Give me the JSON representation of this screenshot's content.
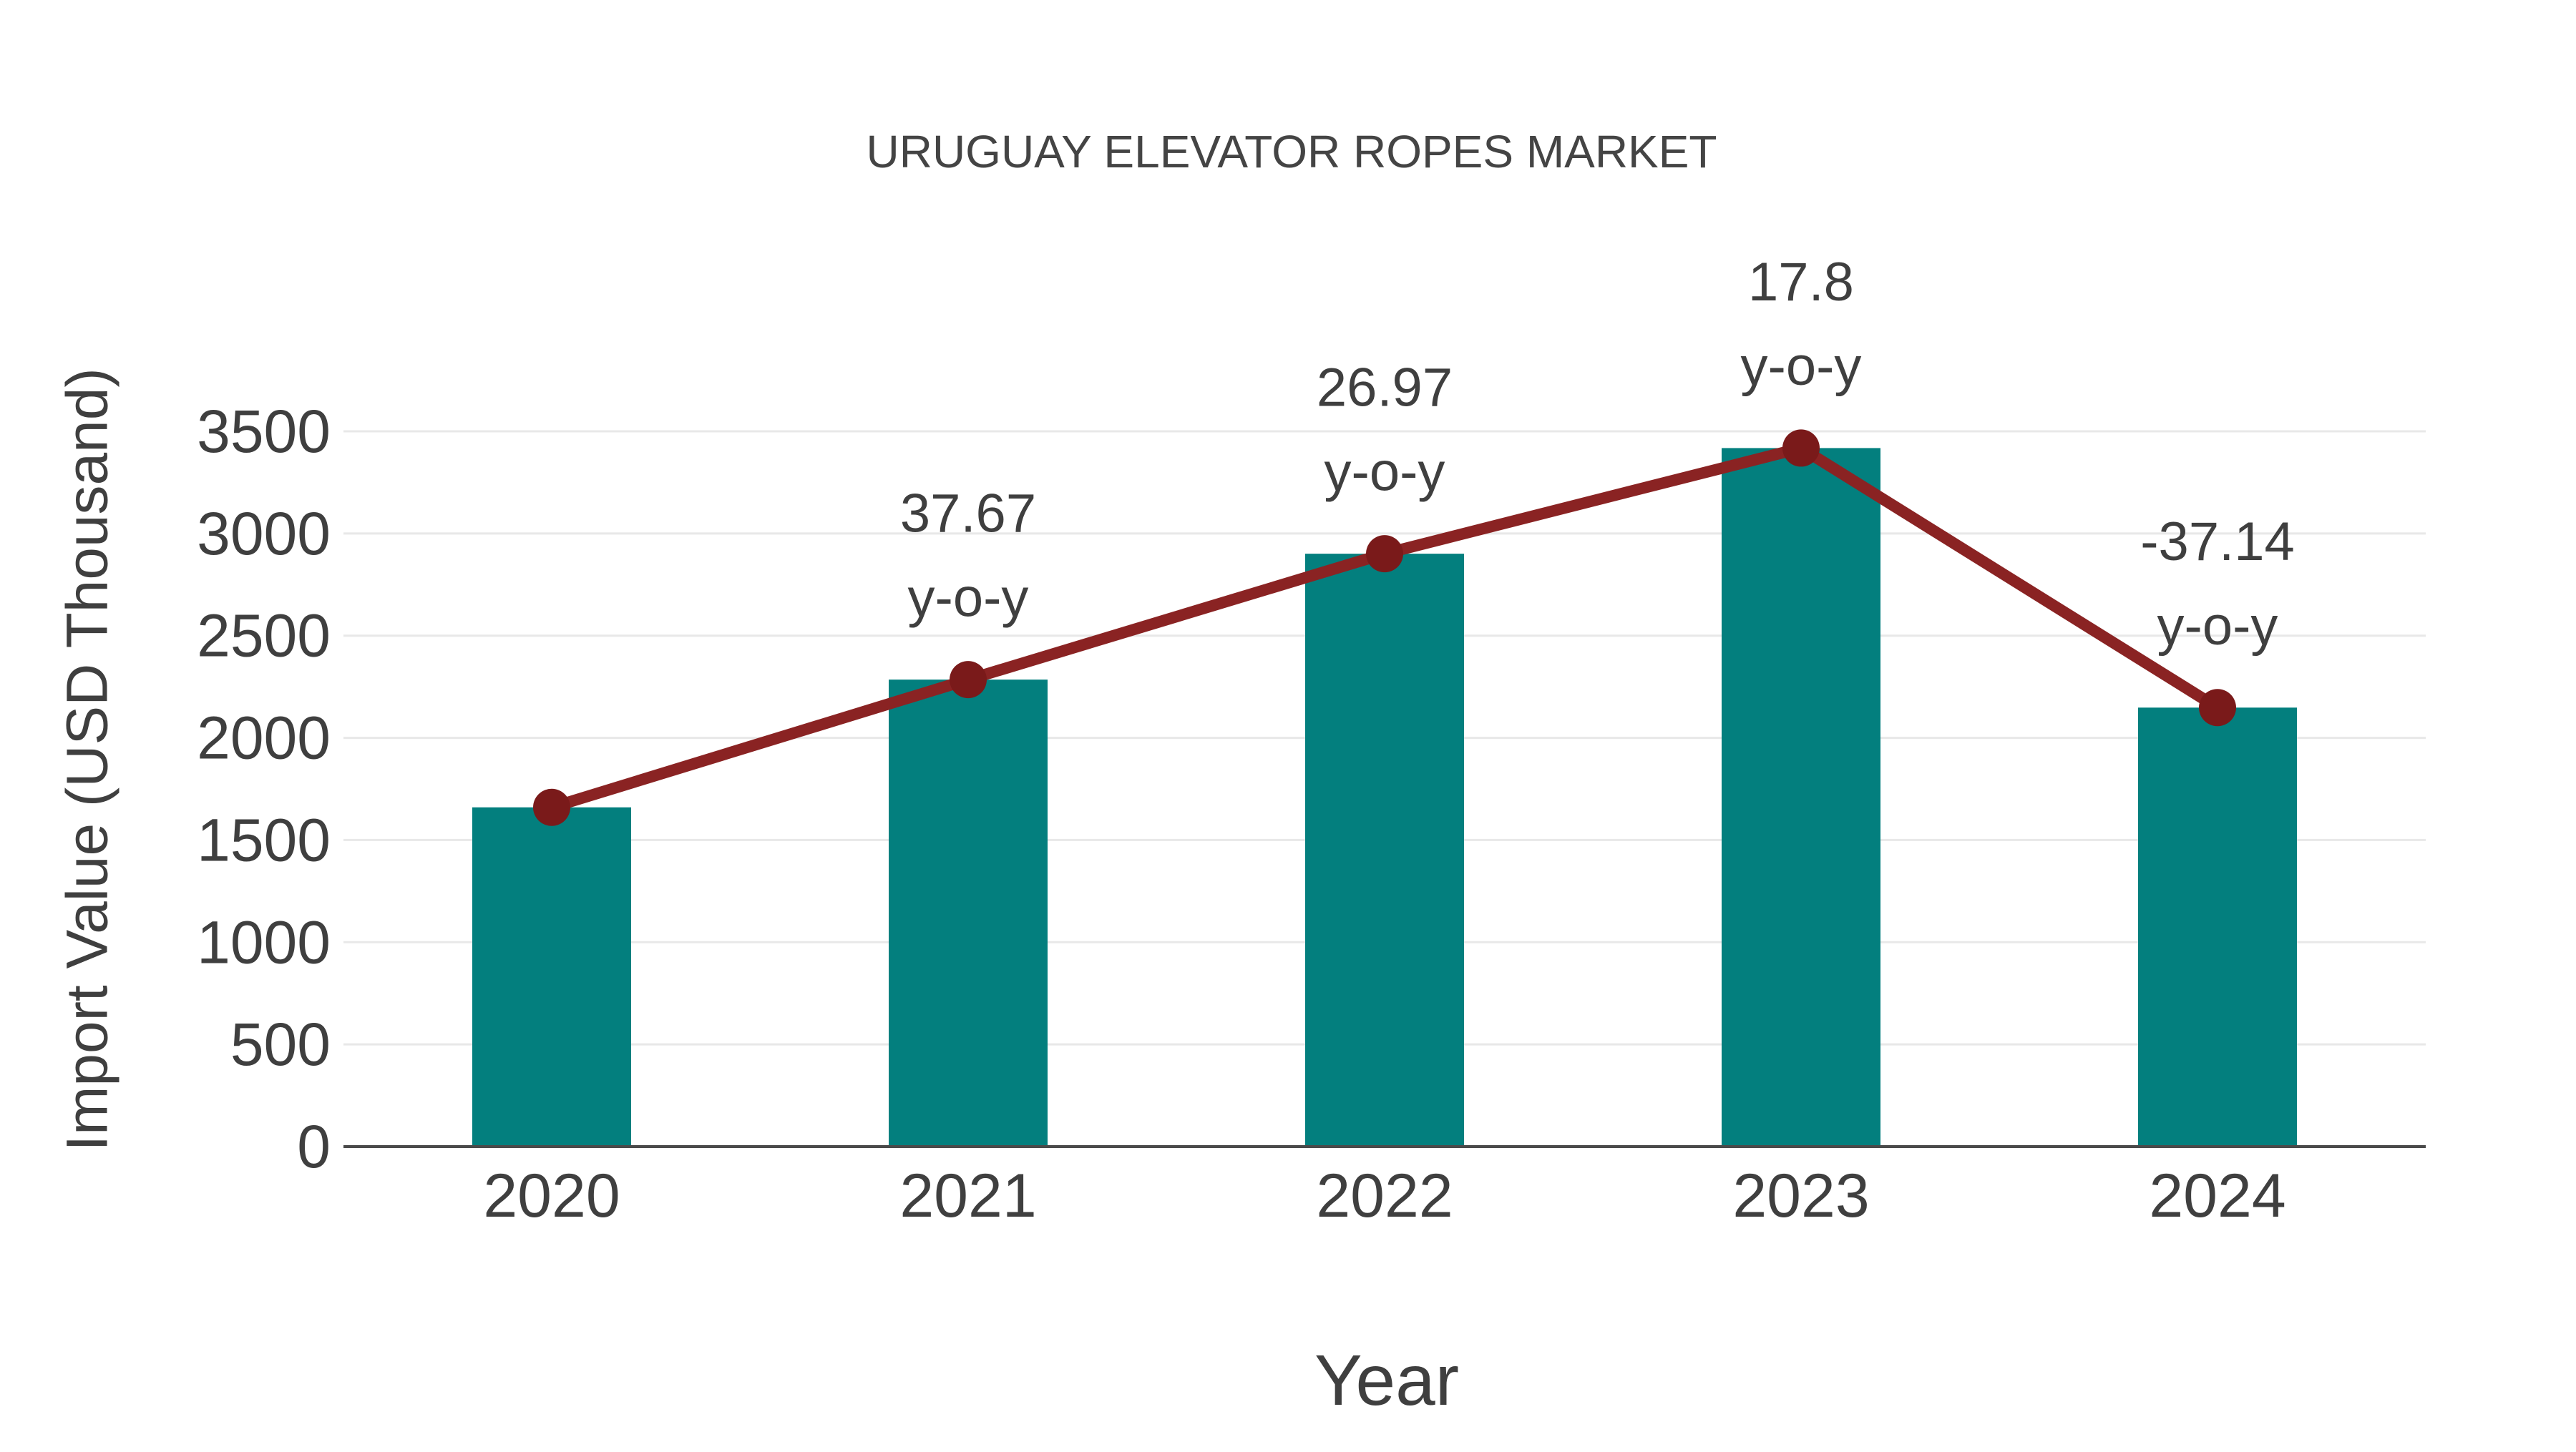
{
  "page": {
    "background": "#ffffff"
  },
  "chart_data": {
    "type": "bar",
    "title": "URUGUAY ELEVATOR ROPES MARKET",
    "xlabel": "Year",
    "ylabel": "Import Value (USD Thousand)",
    "categories": [
      "2020",
      "2021",
      "2022",
      "2023",
      "2024"
    ],
    "series": [
      {
        "name": "Import Value (USD Thousand)",
        "type": "bar",
        "values": [
          1660,
          2285,
          2901,
          3418,
          2148
        ]
      },
      {
        "name": "Import Value trend",
        "type": "line",
        "values": [
          1660,
          2285,
          2901,
          3418,
          2148
        ]
      }
    ],
    "annotations": [
      {
        "category": "2021",
        "line1": "37.67",
        "line2": "y-o-y"
      },
      {
        "category": "2022",
        "line1": "26.97",
        "line2": "y-o-y"
      },
      {
        "category": "2023",
        "line1": "17.8",
        "line2": "y-o-y"
      },
      {
        "category": "2024",
        "line1": "-37.14",
        "line2": "y-o-y"
      }
    ],
    "ylim": [
      0,
      3500
    ],
    "yticks": [
      0,
      500,
      1000,
      1500,
      2000,
      2500,
      3000,
      3500
    ],
    "grid": true,
    "legend": "none",
    "colors": {
      "bar": "#037f7e",
      "line": "#8a2323",
      "marker": "#7a1a1a",
      "axis": "#4a4a4a",
      "grid": "#e8e8e8",
      "text": "#3f3f3f"
    }
  }
}
